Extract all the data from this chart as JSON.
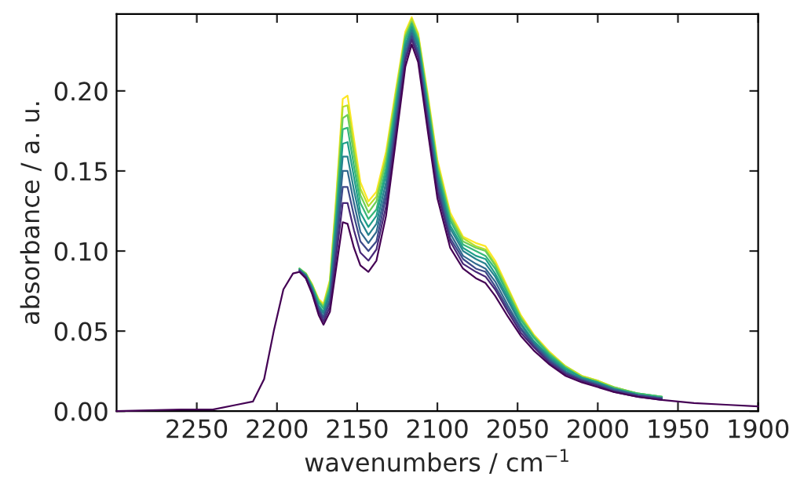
{
  "chart_data": {
    "type": "line",
    "xlabel": "wavenumbers / cm$^{−1}$",
    "ylabel": "absorbance / a. u.",
    "xlim": [
      2300,
      1900
    ],
    "xticks": [
      2250,
      2200,
      2150,
      2100,
      2050,
      2000,
      1950,
      1900
    ],
    "ylim": [
      0,
      0.248
    ],
    "yticks": [
      {
        "value": 0,
        "label": "0.00"
      },
      {
        "value": 0.05,
        "label": "0.05"
      },
      {
        "value": 0.1,
        "label": "0.10"
      },
      {
        "value": 0.15,
        "label": "0.15"
      },
      {
        "value": 0.2,
        "label": "0.20"
      }
    ],
    "grid": false,
    "legend": false,
    "marker": "none",
    "line_style": "solid",
    "x": [
      2300,
      2260,
      2240,
      2225,
      2215,
      2208,
      2202,
      2196,
      2190,
      2186,
      2182,
      2178,
      2174,
      2171,
      2167,
      2163,
      2159,
      2156,
      2152,
      2148,
      2143,
      2138,
      2132,
      2126,
      2120,
      2116,
      2112,
      2106,
      2100,
      2092,
      2084,
      2076,
      2070,
      2064,
      2056,
      2048,
      2040,
      2030,
      2020,
      2010,
      2000,
      1990,
      1975,
      1960,
      1940,
      1920,
      1900
    ],
    "series": [
      {
        "color": "#fde725",
        "values": [
          null,
          null,
          null,
          null,
          null,
          null,
          null,
          null,
          null,
          null,
          0.086,
          0.079,
          0.07,
          0.067,
          0.082,
          0.135,
          0.195,
          0.197,
          0.17,
          0.143,
          0.131,
          0.137,
          0.162,
          0.2,
          0.237,
          0.246,
          0.236,
          0.198,
          0.157,
          0.124,
          0.109,
          0.105,
          0.103,
          0.094,
          0.077,
          0.06,
          0.048,
          0.037,
          0.028,
          0.022,
          0.019,
          0.015,
          0.011,
          null,
          null,
          null,
          null
        ]
      },
      {
        "color": "#b5de2b",
        "values": [
          null,
          null,
          null,
          null,
          null,
          null,
          null,
          null,
          null,
          0.089,
          0.086,
          0.079,
          0.069,
          0.066,
          0.081,
          0.132,
          0.19,
          0.191,
          0.165,
          0.139,
          0.128,
          0.134,
          0.159,
          0.198,
          0.235,
          0.245,
          0.235,
          0.196,
          0.155,
          0.122,
          0.108,
          0.103,
          0.101,
          0.092,
          0.076,
          0.059,
          0.047,
          0.036,
          0.028,
          0.022,
          0.019,
          0.015,
          0.011,
          0.009,
          null,
          null,
          null
        ]
      },
      {
        "color": "#6ece58",
        "values": [
          null,
          null,
          null,
          null,
          null,
          null,
          null,
          null,
          null,
          0.089,
          0.086,
          0.078,
          0.069,
          0.065,
          0.079,
          0.128,
          0.183,
          0.185,
          0.16,
          0.135,
          0.124,
          0.131,
          0.156,
          0.195,
          0.234,
          0.243,
          0.233,
          0.195,
          0.153,
          0.121,
          0.106,
          0.102,
          0.1,
          0.091,
          0.074,
          0.058,
          0.047,
          0.036,
          0.027,
          0.021,
          0.018,
          0.015,
          0.011,
          0.009,
          null,
          null,
          null
        ]
      },
      {
        "color": "#35b779",
        "values": [
          null,
          null,
          null,
          null,
          null,
          null,
          null,
          null,
          null,
          0.089,
          0.085,
          0.078,
          0.068,
          0.064,
          0.077,
          0.124,
          0.176,
          0.177,
          0.153,
          0.13,
          0.12,
          0.126,
          0.152,
          0.192,
          0.232,
          0.242,
          0.232,
          0.192,
          0.151,
          0.119,
          0.104,
          0.1,
          0.097,
          0.089,
          0.073,
          0.057,
          0.046,
          0.035,
          0.027,
          0.021,
          0.018,
          0.014,
          0.011,
          0.009,
          null,
          null,
          null
        ]
      },
      {
        "color": "#1f9e89",
        "values": [
          null,
          null,
          null,
          null,
          null,
          null,
          null,
          null,
          null,
          0.088,
          0.085,
          0.077,
          0.066,
          0.062,
          0.075,
          0.119,
          0.167,
          0.168,
          0.146,
          0.124,
          0.115,
          0.122,
          0.148,
          0.188,
          0.229,
          0.24,
          0.23,
          0.19,
          0.148,
          0.116,
          0.102,
          0.097,
          0.095,
          0.086,
          0.071,
          0.055,
          0.044,
          0.034,
          0.026,
          0.021,
          0.018,
          0.014,
          0.01,
          0.008,
          null,
          null,
          null
        ]
      },
      {
        "color": "#26828e",
        "values": [
          null,
          null,
          null,
          null,
          null,
          null,
          null,
          null,
          null,
          0.088,
          0.085,
          0.076,
          0.065,
          0.061,
          0.073,
          0.114,
          0.159,
          0.159,
          0.138,
          0.119,
          0.11,
          0.117,
          0.143,
          0.185,
          0.227,
          0.238,
          0.228,
          0.187,
          0.146,
          0.114,
          0.1,
          0.095,
          0.092,
          0.084,
          0.069,
          0.054,
          0.043,
          0.033,
          0.025,
          0.02,
          0.017,
          0.014,
          0.01,
          0.008,
          null,
          null,
          null
        ]
      },
      {
        "color": "#31688e",
        "values": [
          null,
          null,
          null,
          null,
          null,
          null,
          null,
          null,
          null,
          0.088,
          0.084,
          0.075,
          0.064,
          0.059,
          0.07,
          0.108,
          0.15,
          0.15,
          0.13,
          0.112,
          0.105,
          0.112,
          0.138,
          0.181,
          0.224,
          0.236,
          0.225,
          0.184,
          0.143,
          0.111,
          0.097,
          0.092,
          0.089,
          0.081,
          0.066,
          0.052,
          0.042,
          0.032,
          0.024,
          0.02,
          0.017,
          0.013,
          0.01,
          0.008,
          null,
          null,
          null
        ]
      },
      {
        "color": "#3e4989",
        "values": [
          null,
          null,
          null,
          null,
          null,
          null,
          null,
          null,
          null,
          0.088,
          0.084,
          0.075,
          0.063,
          0.058,
          0.068,
          0.103,
          0.14,
          0.14,
          0.122,
          0.106,
          0.1,
          0.106,
          0.134,
          0.177,
          0.221,
          0.234,
          0.223,
          0.182,
          0.14,
          0.108,
          0.095,
          0.089,
          0.087,
          0.078,
          0.064,
          0.051,
          0.041,
          0.031,
          0.024,
          0.019,
          0.016,
          0.013,
          0.01,
          0.008,
          null,
          null,
          null
        ]
      },
      {
        "color": "#482878",
        "values": [
          null,
          null,
          null,
          null,
          null,
          null,
          null,
          null,
          null,
          0.087,
          0.083,
          0.074,
          0.062,
          0.056,
          0.065,
          0.097,
          0.13,
          0.13,
          0.113,
          0.099,
          0.094,
          0.101,
          0.128,
          0.173,
          0.219,
          0.232,
          0.221,
          0.179,
          0.137,
          0.106,
          0.092,
          0.087,
          0.084,
          0.076,
          0.062,
          0.049,
          0.04,
          0.03,
          0.023,
          0.019,
          0.016,
          0.012,
          0.009,
          0.007,
          null,
          null,
          null
        ]
      },
      {
        "color": "#440154",
        "values": [
          0,
          0.001,
          0.001,
          0.004,
          0.006,
          0.02,
          0.05,
          0.076,
          0.086,
          0.087,
          0.083,
          0.073,
          0.06,
          0.054,
          0.062,
          0.09,
          0.118,
          0.117,
          0.102,
          0.091,
          0.087,
          0.094,
          0.122,
          0.168,
          0.215,
          0.229,
          0.218,
          0.175,
          0.133,
          0.102,
          0.089,
          0.083,
          0.08,
          0.072,
          0.059,
          0.047,
          0.038,
          0.029,
          0.022,
          0.018,
          0.015,
          0.012,
          0.009,
          0.007,
          0.005,
          0.004,
          0.003
        ]
      }
    ]
  }
}
